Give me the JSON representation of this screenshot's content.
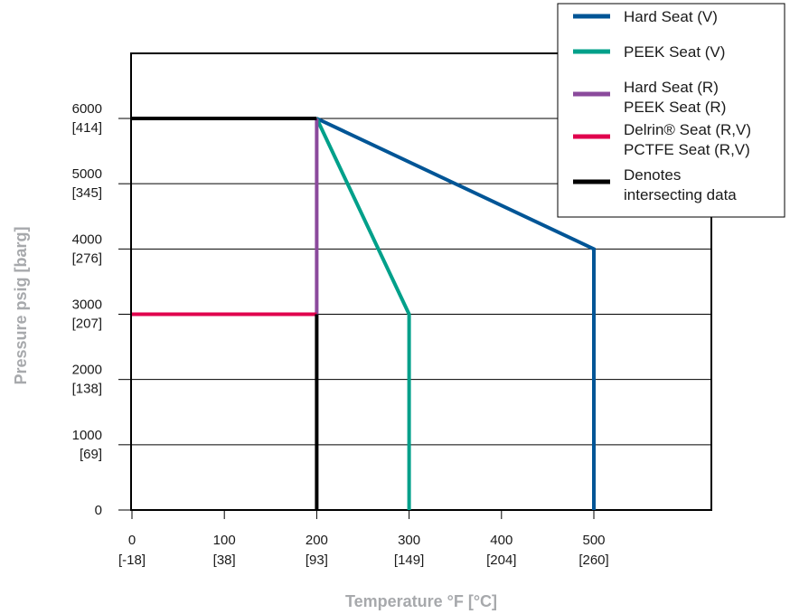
{
  "chart_data": {
    "type": "line",
    "xlabel": "Temperature °F [°C]",
    "ylabel": "Pressure psig [barg]",
    "xlim": [
      0,
      620
    ],
    "ylim": [
      0,
      7000
    ],
    "grid": "horizontal",
    "legend_position": "top-right",
    "x_ticks": [
      {
        "value": 0,
        "label": "0",
        "sublabel": "[-18]"
      },
      {
        "value": 100,
        "label": "100",
        "sublabel": "[38]"
      },
      {
        "value": 200,
        "label": "200",
        "sublabel": "[93]"
      },
      {
        "value": 300,
        "label": "300",
        "sublabel": "[149]"
      },
      {
        "value": 400,
        "label": "400",
        "sublabel": "[204]"
      },
      {
        "value": 500,
        "label": "500",
        "sublabel": "[260]"
      }
    ],
    "y_ticks": [
      {
        "value": 0,
        "label": "0",
        "sublabel": ""
      },
      {
        "value": 1000,
        "label": "1000",
        "sublabel": "[69]"
      },
      {
        "value": 2000,
        "label": "2000",
        "sublabel": "[138]"
      },
      {
        "value": 3000,
        "label": "3000",
        "sublabel": "[207]"
      },
      {
        "value": 4000,
        "label": "4000",
        "sublabel": "[276]"
      },
      {
        "value": 5000,
        "label": "5000",
        "sublabel": "[345]"
      },
      {
        "value": 6000,
        "label": "6000",
        "sublabel": "[414]"
      }
    ],
    "series": [
      {
        "key": "hard-seat-v",
        "color": "#005596",
        "points": [
          [
            200,
            6000
          ],
          [
            500,
            4000
          ],
          [
            500,
            0
          ]
        ]
      },
      {
        "key": "peek-seat-v",
        "color": "#00a08a",
        "points": [
          [
            200,
            6000
          ],
          [
            300,
            3000
          ],
          [
            300,
            0
          ]
        ]
      },
      {
        "key": "hard-peek-seat-r",
        "color": "#8b4a9c",
        "points": [
          [
            200,
            6000
          ],
          [
            200,
            3000
          ]
        ]
      },
      {
        "key": "delrin-pctfe-seat",
        "color": "#e0004d",
        "points": [
          [
            0,
            3000
          ],
          [
            200,
            3000
          ]
        ]
      },
      {
        "key": "intersecting-data",
        "color": "#000000",
        "points": [
          [
            0,
            6000
          ],
          [
            200,
            6000
          ]
        ]
      },
      {
        "key": "intersecting-data-2",
        "color": "#000000",
        "points": [
          [
            200,
            3000
          ],
          [
            200,
            0
          ]
        ]
      }
    ],
    "legend": [
      {
        "color": "#005596",
        "lines": [
          "Hard Seat (V)"
        ]
      },
      {
        "color": "#00a08a",
        "lines": [
          "PEEK Seat (V)"
        ]
      },
      {
        "color": "#8b4a9c",
        "lines": [
          "Hard Seat (R)",
          "PEEK Seat (R)"
        ]
      },
      {
        "color": "#e0004d",
        "lines": [
          "Delrin® Seat (R,V)",
          "PCTFE Seat (R,V)"
        ]
      },
      {
        "color": "#000000",
        "lines": [
          "Denotes",
          "intersecting data"
        ]
      }
    ]
  }
}
